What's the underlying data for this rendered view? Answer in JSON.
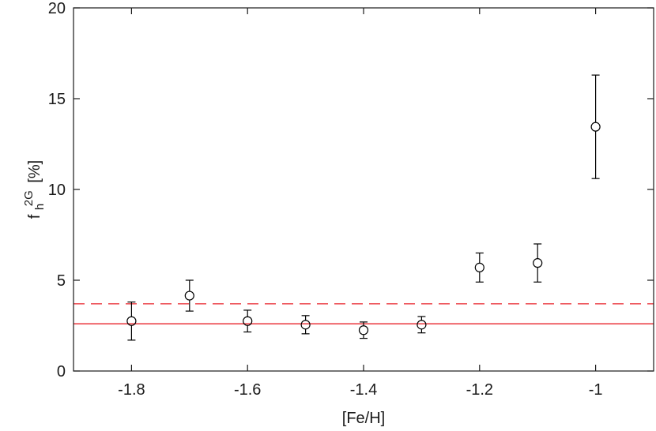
{
  "chart_data": {
    "type": "scatter",
    "title": "",
    "xlabel": "[Fe/H]",
    "ylabel": {
      "base": "f",
      "subscript": "h",
      "superscript": "2G",
      "suffix": "[%]"
    },
    "xlim": [
      -1.9,
      -0.9
    ],
    "ylim": [
      0,
      20
    ],
    "xticks": [
      -1.8,
      -1.6,
      -1.4,
      -1.2,
      -1.0
    ],
    "xtick_labels": [
      "-1.8",
      "-1.6",
      "-1.4",
      "-1.2",
      "-1"
    ],
    "yticks": [
      0,
      5,
      10,
      15,
      20
    ],
    "ytick_labels": [
      "0",
      "5",
      "10",
      "15",
      "20"
    ],
    "grid": false,
    "legend": "none",
    "points": [
      {
        "x": -1.8,
        "y": 2.75,
        "err_low": 1.05,
        "err_high": 1.05
      },
      {
        "x": -1.7,
        "y": 4.15,
        "err_low": 0.85,
        "err_high": 0.85
      },
      {
        "x": -1.6,
        "y": 2.75,
        "err_low": 0.6,
        "err_high": 0.6
      },
      {
        "x": -1.5,
        "y": 2.55,
        "err_low": 0.5,
        "err_high": 0.5
      },
      {
        "x": -1.4,
        "y": 2.25,
        "err_low": 0.45,
        "err_high": 0.45
      },
      {
        "x": -1.3,
        "y": 2.55,
        "err_low": 0.45,
        "err_high": 0.45
      },
      {
        "x": -1.2,
        "y": 5.7,
        "err_low": 0.8,
        "err_high": 0.8
      },
      {
        "x": -1.1,
        "y": 5.95,
        "err_low": 1.05,
        "err_high": 1.05
      },
      {
        "x": -1.0,
        "y": 13.45,
        "err_low": 2.85,
        "err_high": 2.85
      }
    ],
    "reference_lines": [
      {
        "y": 2.6,
        "style": "solid",
        "color": "#e8222a"
      },
      {
        "y": 3.7,
        "style": "dashed",
        "color": "#e8222a"
      }
    ],
    "colors": {
      "points": "#000000",
      "axes": "#1a1a1a"
    }
  }
}
